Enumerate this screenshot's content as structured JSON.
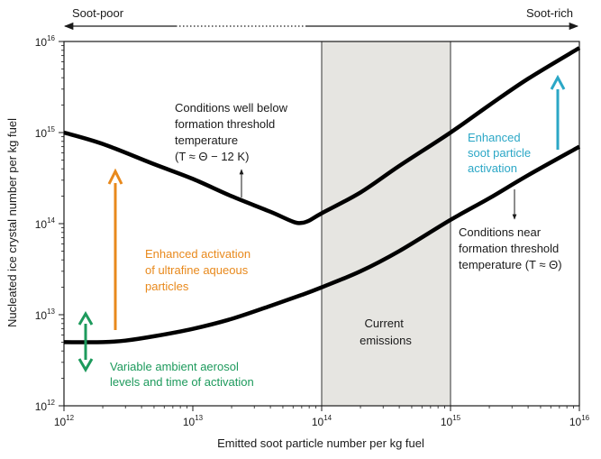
{
  "chart_data": {
    "type": "line",
    "xscale": "log",
    "yscale": "log",
    "xlim": [
      1000000000000.0,
      1e+16
    ],
    "ylim": [
      1000000000000.0,
      1e+16
    ],
    "grid": false,
    "xlabel": "Emitted soot particle number per kg fuel",
    "ylabel": "Nucleated ice crystal number per kg fuel",
    "x_ticks": [
      {
        "base": "10",
        "exp": "12",
        "value": 1000000000000.0
      },
      {
        "base": "10",
        "exp": "13",
        "value": 10000000000000.0
      },
      {
        "base": "10",
        "exp": "14",
        "value": 100000000000000.0
      },
      {
        "base": "10",
        "exp": "15",
        "value": 1000000000000000.0
      },
      {
        "base": "10",
        "exp": "16",
        "value": 1e+16
      }
    ],
    "y_ticks": [
      {
        "base": "10",
        "exp": "12",
        "value": 1000000000000.0
      },
      {
        "base": "10",
        "exp": "13",
        "value": 10000000000000.0
      },
      {
        "base": "10",
        "exp": "14",
        "value": 100000000000000.0
      },
      {
        "base": "10",
        "exp": "15",
        "value": 1000000000000000.0
      },
      {
        "base": "10",
        "exp": "16",
        "value": 1e+16
      }
    ],
    "top_labels": {
      "left": "Soot-poor",
      "right": "Soot-rich"
    },
    "shaded_region": {
      "x": [
        100000000000000.0,
        1000000000000000.0
      ],
      "label_lines": [
        "Current",
        "emissions"
      ],
      "color": "#e6e5e1"
    },
    "series": [
      {
        "x": [
          1000000000000.0,
          2000000000000.0,
          5000000000000.0,
          10000000000000.0,
          20000000000000.0,
          40000000000000.0,
          60000000000000.0,
          70000000000000.0,
          80000000000000.0,
          100000000000000.0,
          200000000000000.0,
          400000000000000.0,
          1000000000000000.0,
          2000000000000000.0,
          4000000000000000.0,
          1e+16
        ],
        "y": [
          1000000000000000.0,
          750000000000000.0,
          450000000000000.0,
          310000000000000.0,
          200000000000000.0,
          135000000000000.0,
          105000000000000.0,
          102000000000000.0,
          108000000000000.0,
          130000000000000.0,
          220000000000000.0,
          430000000000000.0,
          1000000000000000.0,
          2000000000000000.0,
          3900000000000000.0,
          8500000000000000.0
        ]
      },
      {
        "x": [
          1000000000000.0,
          2000000000000.0,
          3000000000000.0,
          5000000000000.0,
          10000000000000.0,
          20000000000000.0,
          40000000000000.0,
          70000000000000.0,
          100000000000000.0,
          200000000000000.0,
          400000000000000.0,
          1000000000000000.0,
          2000000000000000.0,
          4000000000000000.0,
          1e+16
        ],
        "y": [
          5000000000000.0,
          5000000000000.0,
          5200000000000.0,
          5800000000000.0,
          7000000000000.0,
          9000000000000.0,
          12500000000000.0,
          16500000000000.0,
          20000000000000.0,
          30000000000000.0,
          50000000000000.0,
          110000000000000.0,
          190000000000000.0,
          340000000000000.0,
          700000000000000.0
        ]
      }
    ],
    "annotations": [
      {
        "lines": [
          "Conditions well below",
          "formation threshold",
          "temperature",
          "(T ≈ Θ − 12 K)"
        ],
        "color": "#1a1a1a"
      },
      {
        "lines": [
          "Conditions near",
          "formation threshold",
          "temperature (T ≈ Θ)"
        ],
        "color": "#1a1a1a"
      },
      {
        "lines": [
          "Enhanced activation",
          "of ultrafine aqueous",
          "particles"
        ],
        "color": "#e8891c"
      },
      {
        "lines": [
          "Enhanced",
          "soot particle",
          "activation"
        ],
        "color": "#2ba7c6"
      },
      {
        "lines": [
          "Variable ambient aerosol",
          "levels and time of activation"
        ],
        "color": "#1d9a5c"
      }
    ],
    "colors": {
      "orange": "#e8891c",
      "cyan": "#2ba7c6",
      "green": "#1d9a5c",
      "curve": "#000000"
    }
  }
}
